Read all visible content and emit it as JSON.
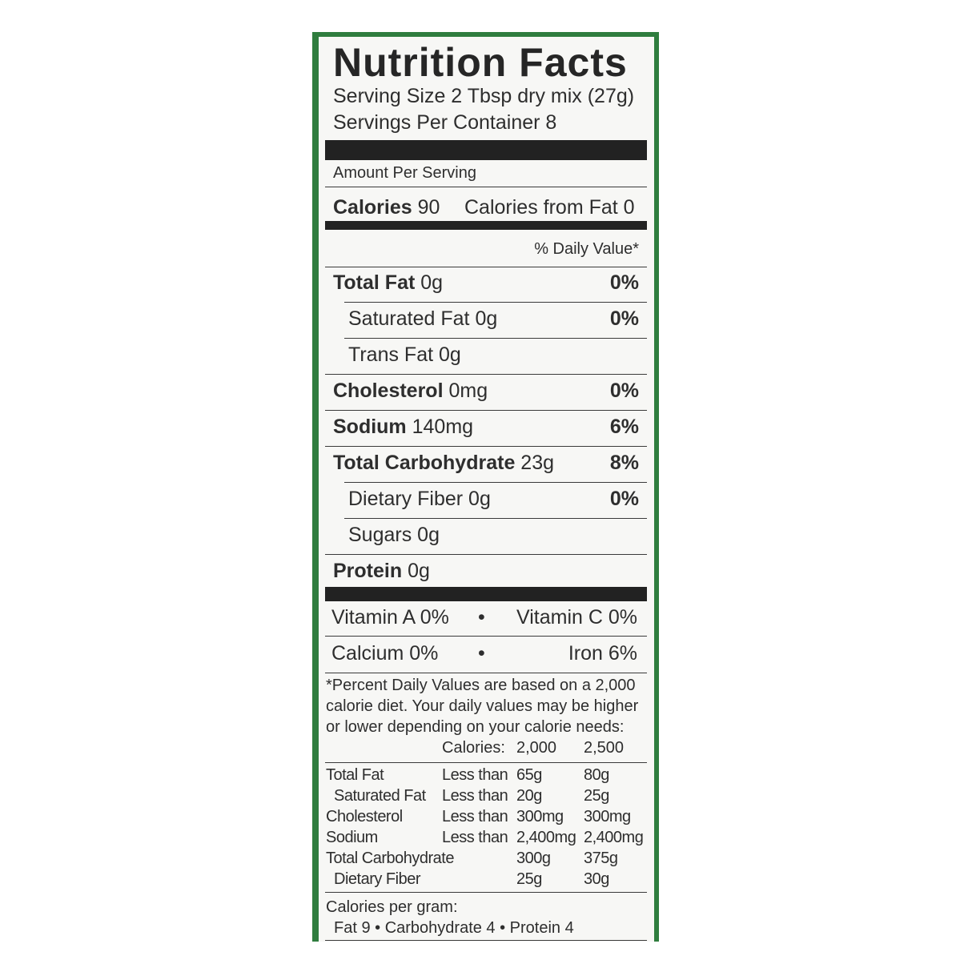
{
  "title": "Nutrition Facts",
  "serving_size": "Serving Size 2 Tbsp dry mix (27g)",
  "servings_per_container": "Servings Per Container 8",
  "amount_per_serving": "Amount Per Serving",
  "calories": {
    "label": "Calories",
    "value": "90",
    "from_fat": "Calories from Fat 0"
  },
  "daily_value_header": "% Daily Value*",
  "nutrients": [
    {
      "label": "Total Fat",
      "amount": "0g",
      "dv": "0%"
    },
    {
      "label": "Saturated Fat",
      "amount": "0g",
      "dv": "0%"
    },
    {
      "label": "Trans Fat",
      "amount": "0g",
      "dv": ""
    },
    {
      "label": "Cholesterol",
      "amount": "0mg",
      "dv": "0%"
    },
    {
      "label": "Sodium",
      "amount": "140mg",
      "dv": "6%"
    },
    {
      "label": "Total Carbohydrate",
      "amount": "23g",
      "dv": "8%"
    },
    {
      "label": "Dietary Fiber",
      "amount": "0g",
      "dv": "0%"
    },
    {
      "label": "Sugars",
      "amount": "0g",
      "dv": ""
    },
    {
      "label": "Protein",
      "amount": "0g",
      "dv": ""
    }
  ],
  "vitamins": {
    "vitamin_a": "Vitamin A 0%",
    "vitamin_c": "Vitamin C 0%",
    "calcium": "Calcium 0%",
    "iron": "Iron 6%",
    "bullet": "•"
  },
  "footnote": [
    "*Percent Daily Values are based on a 2,000",
    "calorie diet. Your daily values may be higher",
    "or lower depending on your calorie needs:"
  ],
  "dv_table": {
    "header": [
      "Calories:",
      "2,000",
      "2,500"
    ],
    "rows": [
      [
        "Total Fat",
        "Less than",
        "65g",
        "80g"
      ],
      [
        "Saturated Fat",
        "Less than",
        "20g",
        "25g"
      ],
      [
        "Cholesterol",
        "Less than",
        "300mg",
        "300mg"
      ],
      [
        "Sodium",
        "Less than",
        "2,400mg",
        "2,400mg"
      ],
      [
        "Total Carbohydrate",
        "",
        "300g",
        "375g"
      ],
      [
        "Dietary Fiber",
        "",
        "25g",
        "30g"
      ]
    ]
  },
  "calories_per_gram": {
    "label": "Calories per gram:",
    "values": "Fat 9 • Carbohydrate 4 • Protein 4"
  }
}
